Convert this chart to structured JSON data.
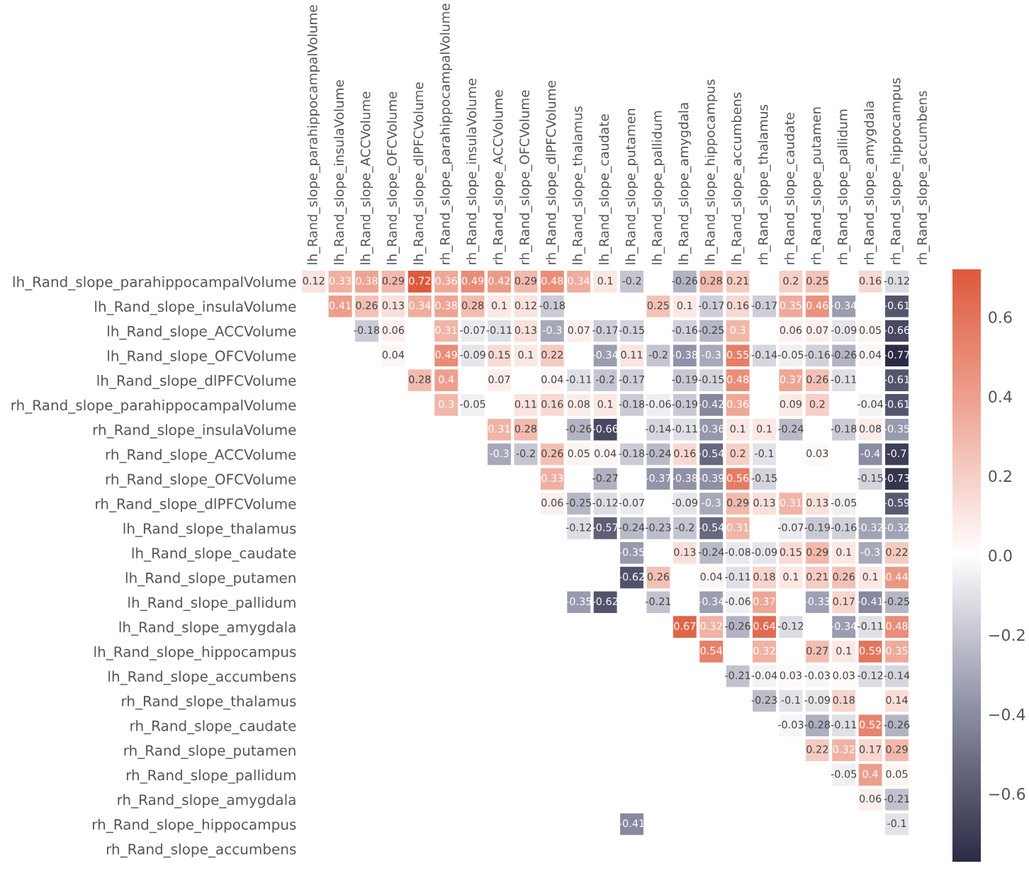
{
  "chart_data": {
    "type": "heatmap",
    "categories": [
      "lh_Rand_slope_parahippocampalVolume",
      "lh_Rand_slope_insulaVolume",
      "lh_Rand_slope_ACCVolume",
      "lh_Rand_slope_OFCVolume",
      "lh_Rand_slope_dlPFCVolume",
      "rh_Rand_slope_parahippocampalVolume",
      "rh_Rand_slope_insulaVolume",
      "rh_Rand_slope_ACCVolume",
      "rh_Rand_slope_OFCVolume",
      "rh_Rand_slope_dlPFCVolume",
      "lh_Rand_slope_thalamus",
      "lh_Rand_slope_caudate",
      "lh_Rand_slope_putamen",
      "lh_Rand_slope_pallidum",
      "lh_Rand_slope_amygdala",
      "lh_Rand_slope_hippocampus",
      "lh_Rand_slope_accumbens",
      "rh_Rand_slope_thalamus",
      "rh_Rand_slope_caudate",
      "rh_Rand_slope_putamen",
      "rh_Rand_slope_pallidum",
      "rh_Rand_slope_amygdala",
      "rh_Rand_slope_hippocampus",
      "rh_Rand_slope_accumbens"
    ],
    "y_categories": [
      "lh_Rand_slope_parahippocampalVolume",
      "lh_Rand_slope_insulaVolume",
      "lh_Rand_slope_ACCVolume",
      "lh_Rand_slope_OFCVolume",
      "lh_Rand_slope_dlPFCVolume",
      "rh_Rand_slope_parahippocampalVolume",
      "rh_Rand_slope_insulaVolume",
      "rh_Rand_slope_ACCVolume",
      "rh_Rand_slope_OFCVolume",
      "rh_Rand_slope_dlPFCVolume",
      "lh_Rand_slope_thalamus",
      "lh_Rand_slope_caudate",
      "lh_Rand_slope_putamen",
      "lh_Rand_slope_pallidum",
      "lh_Rand_slope_amygdala",
      "lh_Rand_slope_hippocampus",
      "lh_Rand_slope_accumbens",
      "rh_Rand_slope_thalamus",
      "rh_Rand_slope_caudate",
      "rh_Rand_slope_putamen",
      "rh_Rand_slope_pallidum",
      "rh_Rand_slope_amygdala",
      "rh_Rand_slope_hippocampus",
      "rh_Rand_slope_accumbens"
    ],
    "cells": [
      [
        0.12,
        0.33,
        0.38,
        0.29,
        0.72,
        0.36,
        0.49,
        0.42,
        0.29,
        0.48,
        0.34,
        0.1,
        -0.2,
        null,
        -0.26,
        0.28,
        0.21,
        null,
        0.2,
        0.25,
        null,
        0.16,
        -0.12,
        null
      ],
      [
        null,
        0.41,
        0.26,
        0.13,
        0.34,
        0.38,
        0.28,
        0.1,
        0.12,
        -0.18,
        null,
        null,
        null,
        0.25,
        0.1,
        -0.17,
        0.16,
        -0.17,
        0.35,
        0.46,
        -0.34,
        null,
        -0.61,
        null
      ],
      [
        null,
        null,
        -0.18,
        0.06,
        null,
        0.31,
        -0.07,
        -0.11,
        0.13,
        -0.3,
        0.07,
        -0.17,
        -0.15,
        null,
        -0.16,
        -0.25,
        0.3,
        null,
        0.06,
        0.07,
        -0.09,
        0.05,
        -0.66,
        null
      ],
      [
        null,
        null,
        null,
        0.04,
        null,
        0.49,
        -0.09,
        0.15,
        0.1,
        0.22,
        null,
        -0.34,
        0.11,
        -0.2,
        -0.38,
        -0.3,
        0.55,
        -0.14,
        -0.05,
        -0.16,
        -0.26,
        0.04,
        -0.77,
        null
      ],
      [
        null,
        null,
        null,
        null,
        0.28,
        0.4,
        null,
        0.07,
        null,
        0.04,
        -0.11,
        -0.2,
        -0.17,
        null,
        -0.19,
        -0.15,
        0.48,
        null,
        0.37,
        0.26,
        -0.11,
        null,
        -0.61,
        null
      ],
      [
        null,
        null,
        null,
        null,
        null,
        0.3,
        -0.05,
        null,
        0.11,
        0.16,
        0.08,
        0.1,
        -0.18,
        -0.06,
        -0.19,
        -0.42,
        0.36,
        null,
        0.09,
        0.2,
        null,
        -0.04,
        -0.61,
        null
      ],
      [
        null,
        null,
        null,
        null,
        null,
        null,
        null,
        0.31,
        0.28,
        null,
        -0.26,
        -0.66,
        null,
        -0.14,
        -0.11,
        -0.36,
        0.1,
        0.1,
        -0.24,
        null,
        -0.18,
        0.08,
        -0.35,
        null
      ],
      [
        null,
        null,
        null,
        null,
        null,
        null,
        null,
        -0.3,
        -0.2,
        0.26,
        0.05,
        0.04,
        -0.18,
        -0.24,
        0.16,
        -0.54,
        0.2,
        -0.1,
        null,
        0.03,
        null,
        -0.4,
        -0.7,
        null
      ],
      [
        null,
        null,
        null,
        null,
        null,
        null,
        null,
        null,
        null,
        0.33,
        null,
        -0.27,
        null,
        -0.37,
        -0.38,
        -0.39,
        0.56,
        -0.15,
        null,
        null,
        null,
        -0.15,
        -0.73,
        null
      ],
      [
        null,
        null,
        null,
        null,
        null,
        null,
        null,
        null,
        null,
        0.06,
        -0.25,
        -0.12,
        -0.07,
        null,
        -0.09,
        -0.3,
        0.29,
        0.13,
        0.31,
        0.13,
        -0.05,
        null,
        -0.59,
        null
      ],
      [
        null,
        null,
        null,
        null,
        null,
        null,
        null,
        null,
        null,
        null,
        -0.12,
        -0.57,
        -0.24,
        -0.23,
        -0.2,
        -0.54,
        0.31,
        null,
        -0.07,
        -0.19,
        -0.16,
        -0.32,
        -0.32,
        null
      ],
      [
        null,
        null,
        null,
        null,
        null,
        null,
        null,
        null,
        null,
        null,
        null,
        null,
        -0.35,
        null,
        0.13,
        -0.24,
        -0.08,
        -0.09,
        0.15,
        0.29,
        0.1,
        -0.3,
        0.22,
        null
      ],
      [
        null,
        null,
        null,
        null,
        null,
        null,
        null,
        null,
        null,
        null,
        null,
        null,
        -0.62,
        0.26,
        null,
        0.04,
        -0.11,
        0.18,
        0.1,
        0.21,
        0.26,
        0.1,
        0.44,
        null
      ],
      [
        null,
        null,
        null,
        null,
        null,
        null,
        null,
        null,
        null,
        null,
        -0.35,
        -0.62,
        null,
        -0.21,
        null,
        -0.34,
        -0.06,
        0.37,
        null,
        -0.33,
        0.17,
        -0.41,
        -0.25,
        null
      ],
      [
        null,
        null,
        null,
        null,
        null,
        null,
        null,
        null,
        null,
        null,
        null,
        null,
        null,
        null,
        0.67,
        0.32,
        -0.26,
        0.64,
        -0.12,
        null,
        -0.34,
        -0.11,
        0.48,
        null
      ],
      [
        null,
        null,
        null,
        null,
        null,
        null,
        null,
        null,
        null,
        null,
        null,
        null,
        null,
        null,
        null,
        0.54,
        null,
        0.32,
        null,
        0.27,
        0.1,
        0.59,
        0.35,
        null
      ],
      [
        null,
        null,
        null,
        null,
        null,
        null,
        null,
        null,
        null,
        null,
        null,
        null,
        null,
        null,
        null,
        null,
        -0.21,
        -0.04,
        0.03,
        -0.03,
        0.03,
        -0.12,
        -0.14,
        null
      ],
      [
        null,
        null,
        null,
        null,
        null,
        null,
        null,
        null,
        null,
        null,
        null,
        null,
        null,
        null,
        null,
        null,
        null,
        -0.23,
        -0.1,
        -0.09,
        0.18,
        null,
        0.14,
        null
      ],
      [
        null,
        null,
        null,
        null,
        null,
        null,
        null,
        null,
        null,
        null,
        null,
        null,
        null,
        null,
        null,
        null,
        null,
        null,
        -0.03,
        -0.28,
        -0.11,
        0.52,
        -0.26,
        null
      ],
      [
        null,
        null,
        null,
        null,
        null,
        null,
        null,
        null,
        null,
        null,
        null,
        null,
        null,
        null,
        null,
        null,
        null,
        null,
        null,
        0.22,
        0.32,
        0.17,
        0.29,
        null
      ],
      [
        null,
        null,
        null,
        null,
        null,
        null,
        null,
        null,
        null,
        null,
        null,
        null,
        null,
        null,
        null,
        null,
        null,
        null,
        null,
        null,
        -0.05,
        0.4,
        0.05,
        null
      ],
      [
        null,
        null,
        null,
        null,
        null,
        null,
        null,
        null,
        null,
        null,
        null,
        null,
        null,
        null,
        null,
        null,
        null,
        null,
        null,
        null,
        null,
        0.06,
        -0.21,
        null
      ],
      [
        null,
        null,
        null,
        null,
        null,
        null,
        null,
        null,
        null,
        null,
        null,
        null,
        -0.41,
        null,
        null,
        null,
        null,
        null,
        null,
        null,
        null,
        null,
        -0.1,
        null
      ],
      [
        null,
        null,
        null,
        null,
        null,
        null,
        null,
        null,
        null,
        null,
        null,
        null,
        null,
        null,
        null,
        null,
        null,
        null,
        null,
        null,
        null,
        null,
        null,
        null
      ]
    ],
    "clim": [
      -0.77,
      0.72
    ],
    "cticks": [
      {
        "value": -0.6,
        "label": "−0.6"
      },
      {
        "value": -0.4,
        "label": "−0.4"
      },
      {
        "value": -0.2,
        "label": "−0.2"
      },
      {
        "value": 0.0,
        "label": "0.0"
      },
      {
        "value": 0.2,
        "label": "0.2"
      },
      {
        "value": 0.4,
        "label": "0.4"
      },
      {
        "value": 0.6,
        "label": "0.6"
      }
    ],
    "data_labels": true
  }
}
